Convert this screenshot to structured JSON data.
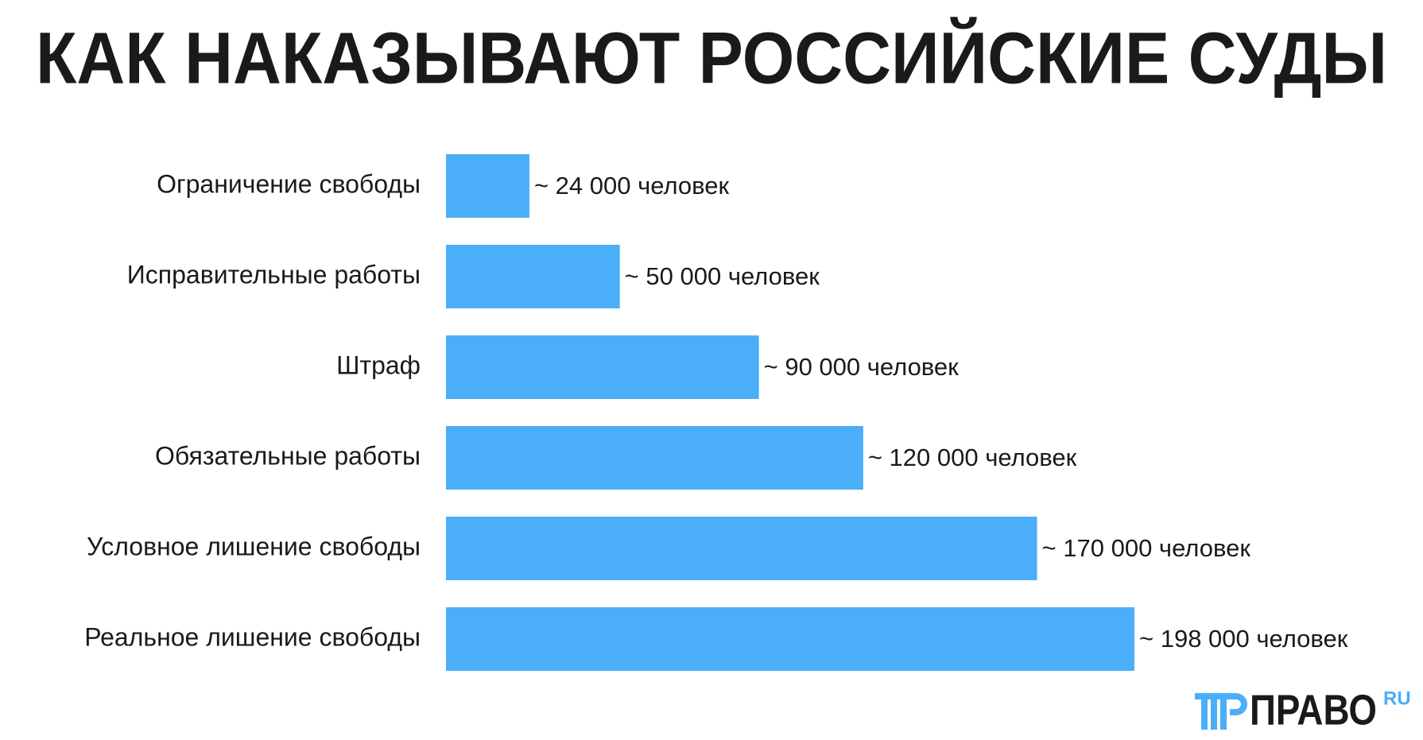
{
  "chart_data": {
    "type": "bar",
    "orientation": "horizontal",
    "title": "КАК НАКАЗЫВАЮТ РОССИЙСКИЕ СУДЫ",
    "categories": [
      "Ограничение свободы",
      "Исправительные работы",
      "Штраф",
      "Обязательные работы",
      "Условное лишение свободы",
      "Реальное лишение свободы"
    ],
    "values": [
      24000,
      50000,
      90000,
      120000,
      170000,
      198000
    ],
    "value_labels": [
      "~ 24 000 человек",
      "~ 50 000 человек",
      "~ 90 000 человек",
      "~ 120 000 человек",
      "~ 170 000 человек",
      "~ 198 000 человек"
    ],
    "color": "#4baef8"
  },
  "logo": {
    "text": "ПРАВО",
    "suffix": "RU"
  }
}
